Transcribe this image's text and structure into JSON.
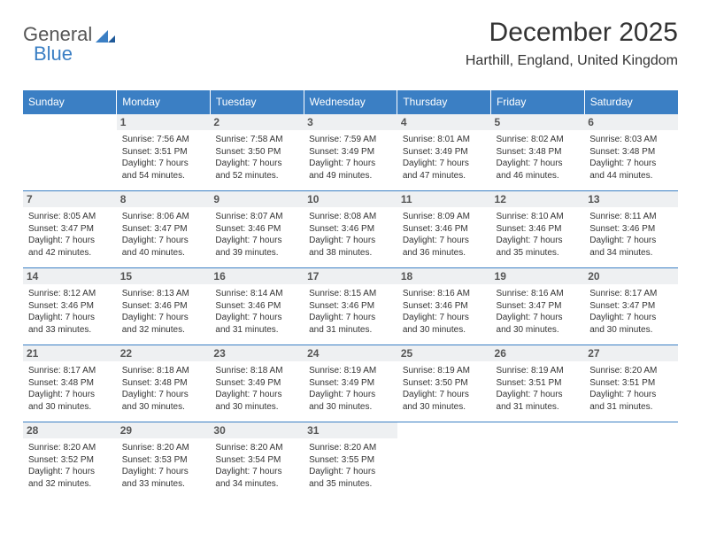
{
  "logo": {
    "part1": "General",
    "part2": "Blue"
  },
  "title": "December 2025",
  "location": "Harthill, England, United Kingdom",
  "colors": {
    "accent": "#3b7fc4",
    "header_bg": "#3b7fc4",
    "daynum_bg": "#eef0f2"
  },
  "weekday_labels": [
    "Sunday",
    "Monday",
    "Tuesday",
    "Wednesday",
    "Thursday",
    "Friday",
    "Saturday"
  ],
  "weeks": [
    [
      null,
      {
        "n": "1",
        "sr": "Sunrise: 7:56 AM",
        "ss": "Sunset: 3:51 PM",
        "dl": "Daylight: 7 hours and 54 minutes."
      },
      {
        "n": "2",
        "sr": "Sunrise: 7:58 AM",
        "ss": "Sunset: 3:50 PM",
        "dl": "Daylight: 7 hours and 52 minutes."
      },
      {
        "n": "3",
        "sr": "Sunrise: 7:59 AM",
        "ss": "Sunset: 3:49 PM",
        "dl": "Daylight: 7 hours and 49 minutes."
      },
      {
        "n": "4",
        "sr": "Sunrise: 8:01 AM",
        "ss": "Sunset: 3:49 PM",
        "dl": "Daylight: 7 hours and 47 minutes."
      },
      {
        "n": "5",
        "sr": "Sunrise: 8:02 AM",
        "ss": "Sunset: 3:48 PM",
        "dl": "Daylight: 7 hours and 46 minutes."
      },
      {
        "n": "6",
        "sr": "Sunrise: 8:03 AM",
        "ss": "Sunset: 3:48 PM",
        "dl": "Daylight: 7 hours and 44 minutes."
      }
    ],
    [
      {
        "n": "7",
        "sr": "Sunrise: 8:05 AM",
        "ss": "Sunset: 3:47 PM",
        "dl": "Daylight: 7 hours and 42 minutes."
      },
      {
        "n": "8",
        "sr": "Sunrise: 8:06 AM",
        "ss": "Sunset: 3:47 PM",
        "dl": "Daylight: 7 hours and 40 minutes."
      },
      {
        "n": "9",
        "sr": "Sunrise: 8:07 AM",
        "ss": "Sunset: 3:46 PM",
        "dl": "Daylight: 7 hours and 39 minutes."
      },
      {
        "n": "10",
        "sr": "Sunrise: 8:08 AM",
        "ss": "Sunset: 3:46 PM",
        "dl": "Daylight: 7 hours and 38 minutes."
      },
      {
        "n": "11",
        "sr": "Sunrise: 8:09 AM",
        "ss": "Sunset: 3:46 PM",
        "dl": "Daylight: 7 hours and 36 minutes."
      },
      {
        "n": "12",
        "sr": "Sunrise: 8:10 AM",
        "ss": "Sunset: 3:46 PM",
        "dl": "Daylight: 7 hours and 35 minutes."
      },
      {
        "n": "13",
        "sr": "Sunrise: 8:11 AM",
        "ss": "Sunset: 3:46 PM",
        "dl": "Daylight: 7 hours and 34 minutes."
      }
    ],
    [
      {
        "n": "14",
        "sr": "Sunrise: 8:12 AM",
        "ss": "Sunset: 3:46 PM",
        "dl": "Daylight: 7 hours and 33 minutes."
      },
      {
        "n": "15",
        "sr": "Sunrise: 8:13 AM",
        "ss": "Sunset: 3:46 PM",
        "dl": "Daylight: 7 hours and 32 minutes."
      },
      {
        "n": "16",
        "sr": "Sunrise: 8:14 AM",
        "ss": "Sunset: 3:46 PM",
        "dl": "Daylight: 7 hours and 31 minutes."
      },
      {
        "n": "17",
        "sr": "Sunrise: 8:15 AM",
        "ss": "Sunset: 3:46 PM",
        "dl": "Daylight: 7 hours and 31 minutes."
      },
      {
        "n": "18",
        "sr": "Sunrise: 8:16 AM",
        "ss": "Sunset: 3:46 PM",
        "dl": "Daylight: 7 hours and 30 minutes."
      },
      {
        "n": "19",
        "sr": "Sunrise: 8:16 AM",
        "ss": "Sunset: 3:47 PM",
        "dl": "Daylight: 7 hours and 30 minutes."
      },
      {
        "n": "20",
        "sr": "Sunrise: 8:17 AM",
        "ss": "Sunset: 3:47 PM",
        "dl": "Daylight: 7 hours and 30 minutes."
      }
    ],
    [
      {
        "n": "21",
        "sr": "Sunrise: 8:17 AM",
        "ss": "Sunset: 3:48 PM",
        "dl": "Daylight: 7 hours and 30 minutes."
      },
      {
        "n": "22",
        "sr": "Sunrise: 8:18 AM",
        "ss": "Sunset: 3:48 PM",
        "dl": "Daylight: 7 hours and 30 minutes."
      },
      {
        "n": "23",
        "sr": "Sunrise: 8:18 AM",
        "ss": "Sunset: 3:49 PM",
        "dl": "Daylight: 7 hours and 30 minutes."
      },
      {
        "n": "24",
        "sr": "Sunrise: 8:19 AM",
        "ss": "Sunset: 3:49 PM",
        "dl": "Daylight: 7 hours and 30 minutes."
      },
      {
        "n": "25",
        "sr": "Sunrise: 8:19 AM",
        "ss": "Sunset: 3:50 PM",
        "dl": "Daylight: 7 hours and 30 minutes."
      },
      {
        "n": "26",
        "sr": "Sunrise: 8:19 AM",
        "ss": "Sunset: 3:51 PM",
        "dl": "Daylight: 7 hours and 31 minutes."
      },
      {
        "n": "27",
        "sr": "Sunrise: 8:20 AM",
        "ss": "Sunset: 3:51 PM",
        "dl": "Daylight: 7 hours and 31 minutes."
      }
    ],
    [
      {
        "n": "28",
        "sr": "Sunrise: 8:20 AM",
        "ss": "Sunset: 3:52 PM",
        "dl": "Daylight: 7 hours and 32 minutes."
      },
      {
        "n": "29",
        "sr": "Sunrise: 8:20 AM",
        "ss": "Sunset: 3:53 PM",
        "dl": "Daylight: 7 hours and 33 minutes."
      },
      {
        "n": "30",
        "sr": "Sunrise: 8:20 AM",
        "ss": "Sunset: 3:54 PM",
        "dl": "Daylight: 7 hours and 34 minutes."
      },
      {
        "n": "31",
        "sr": "Sunrise: 8:20 AM",
        "ss": "Sunset: 3:55 PM",
        "dl": "Daylight: 7 hours and 35 minutes."
      },
      null,
      null,
      null
    ]
  ]
}
